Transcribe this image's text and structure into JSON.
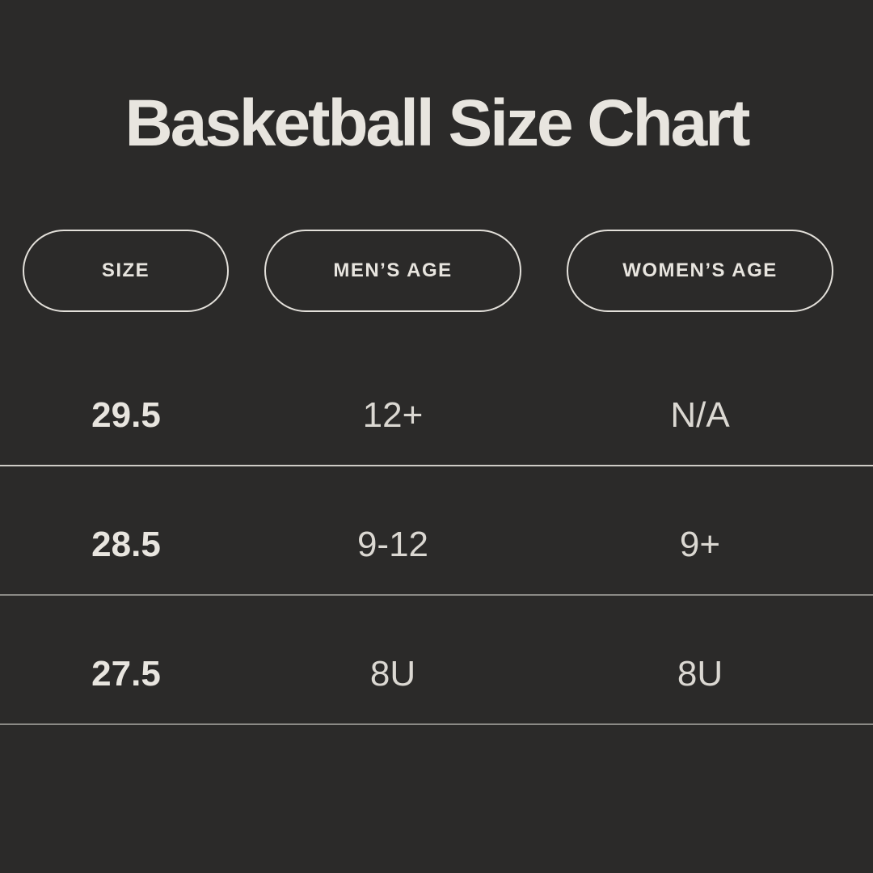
{
  "page": {
    "title": "Basketball Size Chart"
  },
  "colors": {
    "background": "#2b2a29",
    "text": "#e8e5df",
    "value_text": "#dbd8d2",
    "pill_border": "#e3e0da",
    "divider_strong": "#cfccc6",
    "divider_soft": "#8b8a86"
  },
  "table": {
    "columns": [
      {
        "label": "SIZE"
      },
      {
        "label": "MEN’S AGE"
      },
      {
        "label": "WOMEN’S AGE"
      }
    ],
    "rows": [
      {
        "size": "29.5",
        "mens_age": "12+",
        "womens_age": "N/A"
      },
      {
        "size": "28.5",
        "mens_age": "9-12",
        "womens_age": "9+"
      },
      {
        "size": "27.5",
        "mens_age": "8U",
        "womens_age": "8U"
      }
    ]
  }
}
